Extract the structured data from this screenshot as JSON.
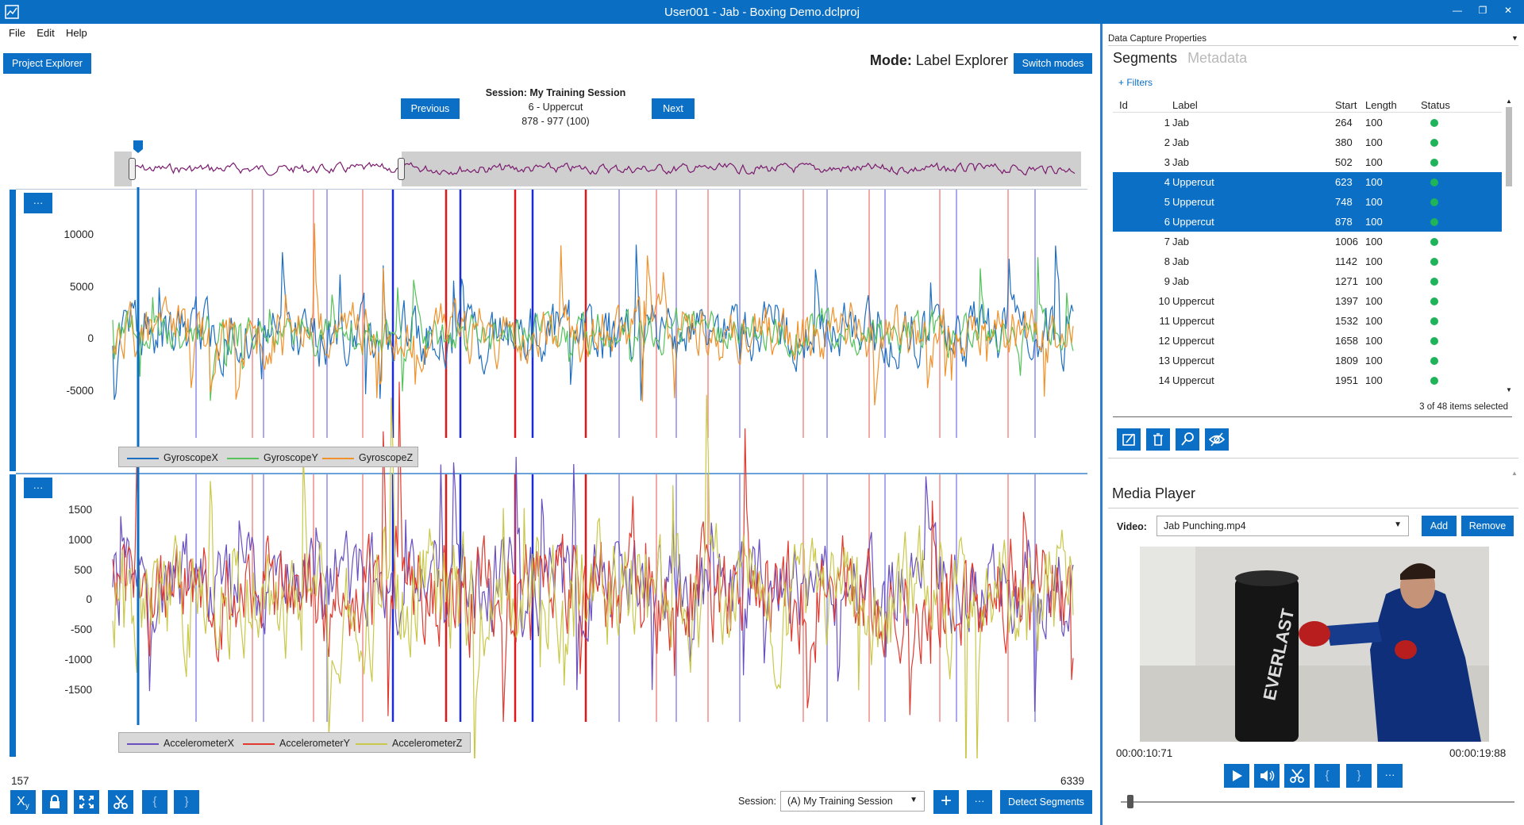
{
  "window": {
    "title": "User001 - Jab - Boxing Demo.dclproj"
  },
  "menu": {
    "items": [
      "File",
      "Edit",
      "Help"
    ]
  },
  "toolbar": {
    "project_explorer": "Project Explorer",
    "mode_label": "Mode:",
    "mode_value": "Label Explorer",
    "switch_modes": "Switch modes"
  },
  "navigator": {
    "previous": "Previous",
    "next": "Next",
    "session_title": "Session: My Training Session",
    "segment": "6 - Uppercut",
    "range": "878 - 977 (100)"
  },
  "plots": {
    "gyro_ticks": [
      "10000",
      "5000",
      "0",
      "-5000"
    ],
    "accel_ticks": [
      "1500",
      "1000",
      "500",
      "0",
      "-500",
      "-1000",
      "-1500"
    ],
    "gyro_legend": [
      "GyroscopeX",
      "GyroscopeY",
      "GyroscopeZ"
    ],
    "accel_legend": [
      "AccelerometerX",
      "AccelerometerY",
      "AccelerometerZ"
    ],
    "more_label": "···",
    "colors": {
      "gyro_x": "#1f6fc0",
      "gyro_y": "#55c25a",
      "gyro_z": "#f0922b",
      "accel_x": "#6a4fc0",
      "accel_y": "#e03a2f",
      "accel_z": "#c9c84a",
      "overview": "#7a1a6e",
      "cursor": "#0b6fc5"
    }
  },
  "bottom_bar": {
    "start_value": "157",
    "end_value": "6339",
    "tool_xy": "X",
    "tool_xy_sub": "y",
    "tool_bracket_open": "{",
    "tool_bracket_close": "}",
    "session_label": "Session:",
    "session_value": "(A) My Training Session",
    "add": "+",
    "more": "···",
    "detect_segments": "Detect Segments"
  },
  "properties": {
    "header": "Data Capture Properties",
    "tab_segments": "Segments",
    "tab_metadata": "Metadata",
    "filters": "+ Filters",
    "columns": [
      "Id",
      "Label",
      "Start",
      "Length",
      "Status"
    ],
    "rows": [
      {
        "id": "1",
        "label": "Jab",
        "start": "264",
        "length": "100",
        "selected": false
      },
      {
        "id": "2",
        "label": "Jab",
        "start": "380",
        "length": "100",
        "selected": false
      },
      {
        "id": "3",
        "label": "Jab",
        "start": "502",
        "length": "100",
        "selected": false
      },
      {
        "id": "4",
        "label": "Uppercut",
        "start": "623",
        "length": "100",
        "selected": true
      },
      {
        "id": "5",
        "label": "Uppercut",
        "start": "748",
        "length": "100",
        "selected": true
      },
      {
        "id": "6",
        "label": "Uppercut",
        "start": "878",
        "length": "100",
        "selected": true
      },
      {
        "id": "7",
        "label": "Jab",
        "start": "1006",
        "length": "100",
        "selected": false
      },
      {
        "id": "8",
        "label": "Jab",
        "start": "1142",
        "length": "100",
        "selected": false
      },
      {
        "id": "9",
        "label": "Jab",
        "start": "1271",
        "length": "100",
        "selected": false
      },
      {
        "id": "10",
        "label": "Uppercut",
        "start": "1397",
        "length": "100",
        "selected": false
      },
      {
        "id": "11",
        "label": "Uppercut",
        "start": "1532",
        "length": "100",
        "selected": false
      },
      {
        "id": "12",
        "label": "Uppercut",
        "start": "1658",
        "length": "100",
        "selected": false
      },
      {
        "id": "13",
        "label": "Uppercut",
        "start": "1809",
        "length": "100",
        "selected": false
      },
      {
        "id": "14",
        "label": "Uppercut",
        "start": "1951",
        "length": "100",
        "selected": false
      }
    ],
    "items_selected": "3 of 48 items selected",
    "status_color": "#1fb35a"
  },
  "media": {
    "title": "Media Player",
    "video_label": "Video:",
    "video_value": "Jab Punching.mp4",
    "add": "Add",
    "remove": "Remove",
    "time_current": "00:00:10:71",
    "time_total": "00:00:19:88",
    "bracket_open": "{",
    "bracket_close": "}",
    "more": "···",
    "bag_brand": "EVERLAST"
  }
}
